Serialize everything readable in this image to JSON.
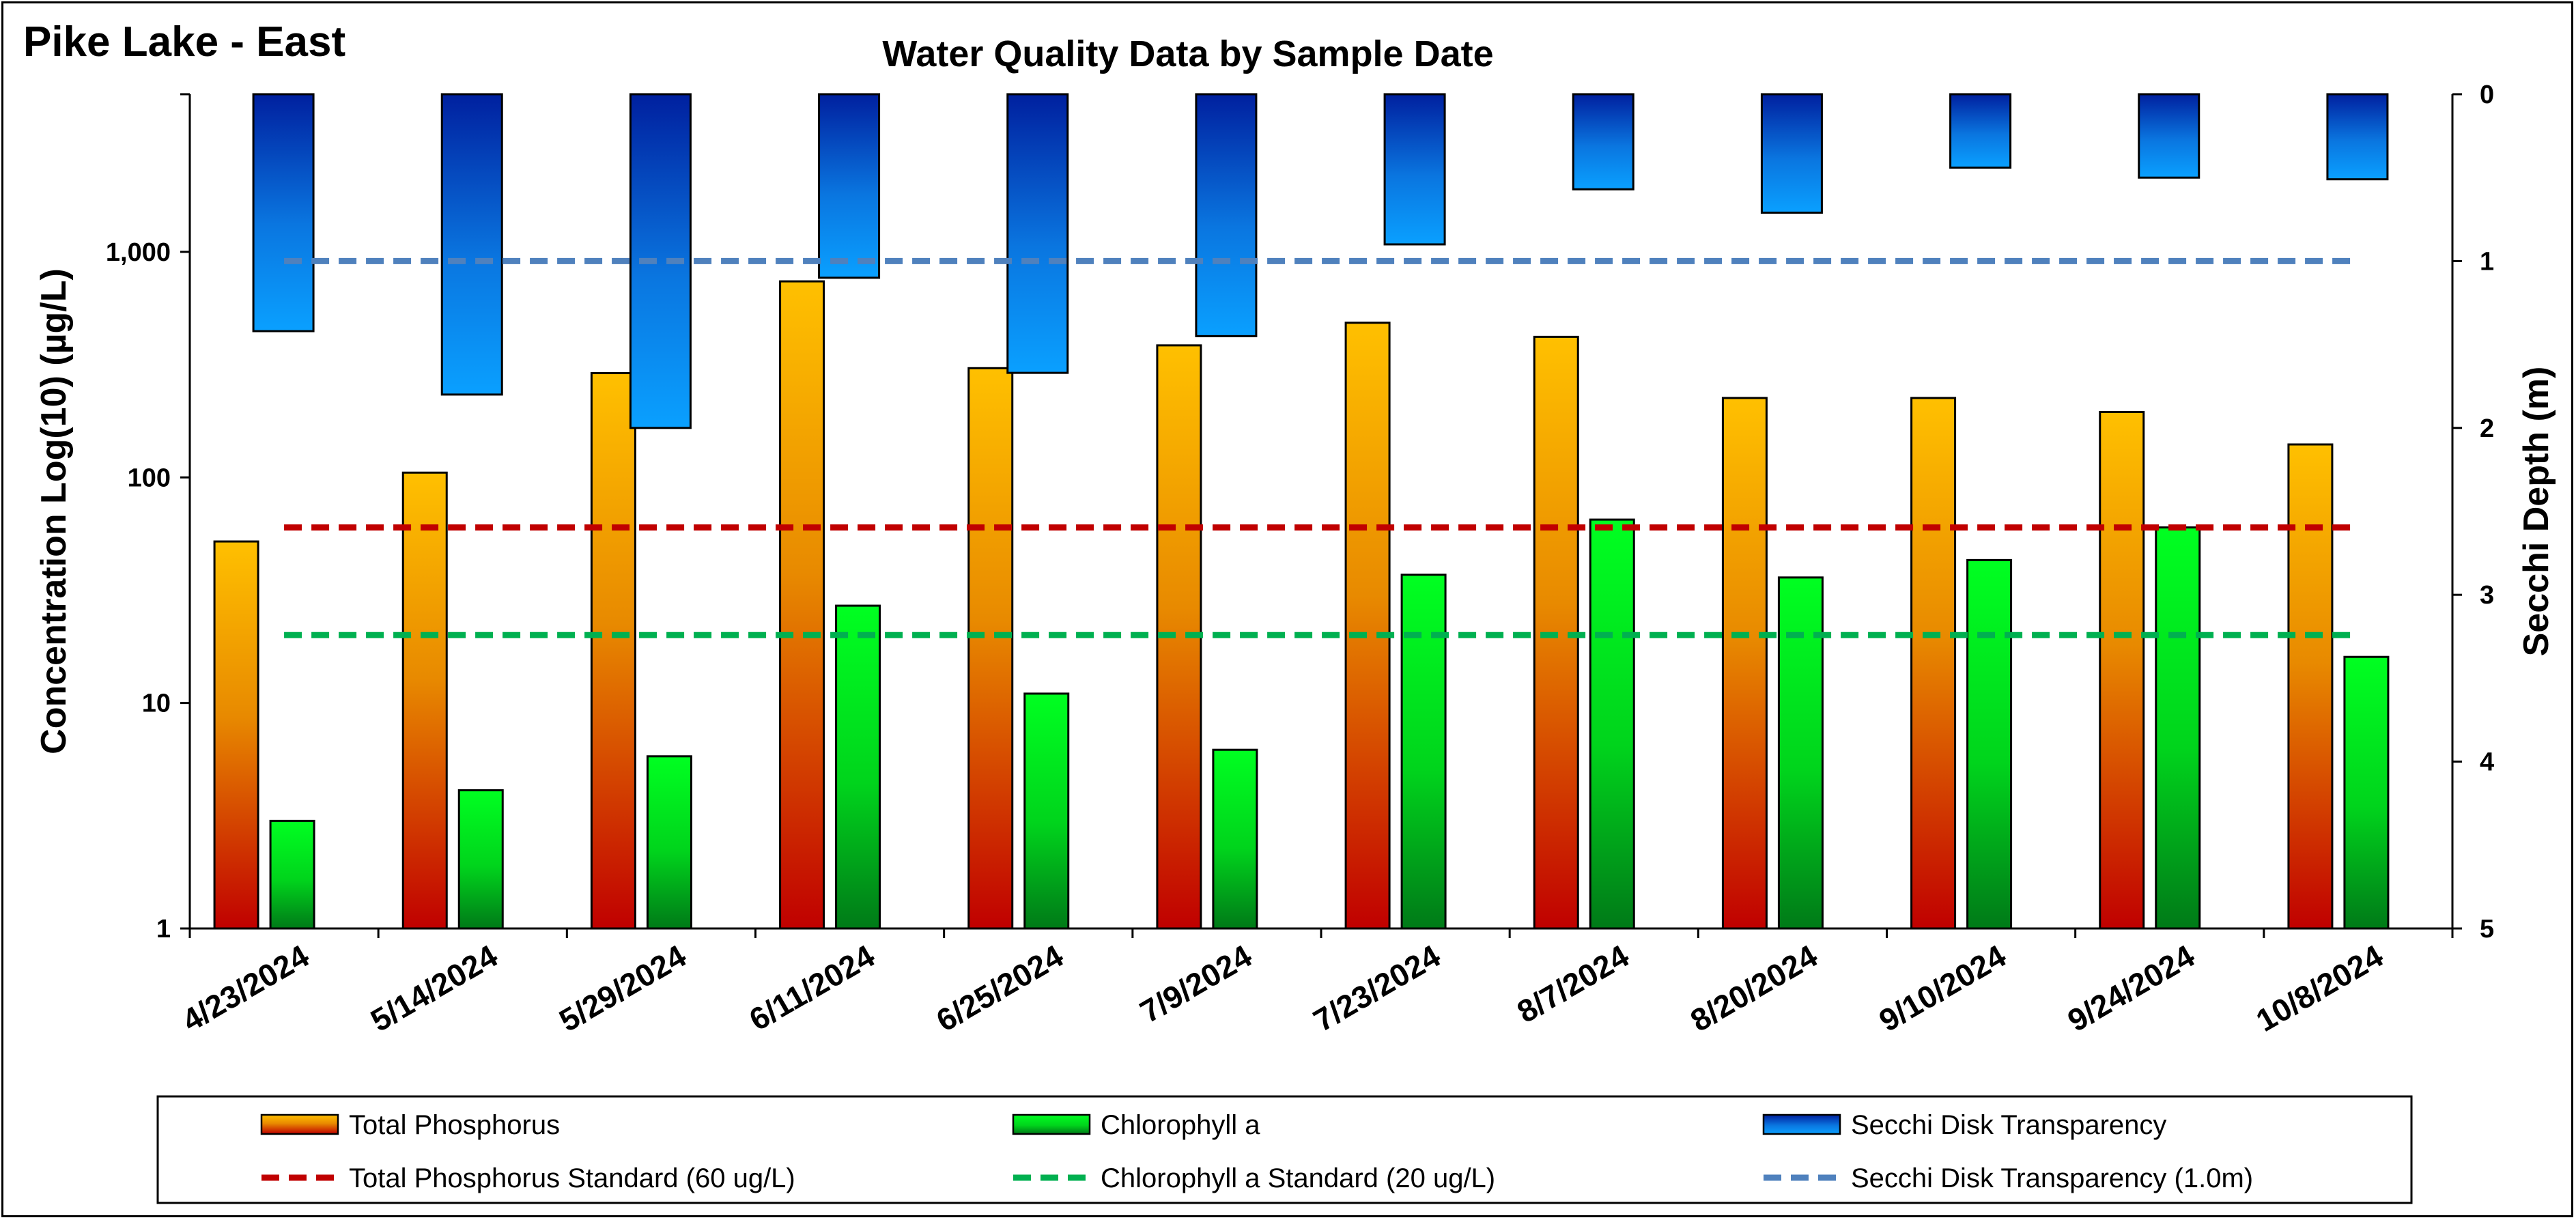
{
  "page_title": "Pike Lake - East",
  "chart_data": {
    "type": "bar",
    "title": "Water Quality Data by Sample Date",
    "ylabel": "Concentration Log(10) (µg/L)",
    "y2label": "Secchi Depth (m)",
    "yscale": "log",
    "ylim": [
      1,
      5000
    ],
    "y2lim": [
      0,
      5
    ],
    "y2_reversed": true,
    "y_ticks": [
      {
        "value": 1,
        "label": "1"
      },
      {
        "value": 10,
        "label": "10"
      },
      {
        "value": 100,
        "label": "100"
      },
      {
        "value": 1000,
        "label": "1,000"
      }
    ],
    "y2_ticks": [
      {
        "value": 0,
        "label": "0"
      },
      {
        "value": 1,
        "label": "1"
      },
      {
        "value": 2,
        "label": "2"
      },
      {
        "value": 3,
        "label": "3"
      },
      {
        "value": 4,
        "label": "4"
      },
      {
        "value": 5,
        "label": "5"
      }
    ],
    "categories": [
      "4/23/2024",
      "5/14/2024",
      "5/29/2024",
      "6/11/2024",
      "6/25/2024",
      "7/9/2024",
      "7/23/2024",
      "8/7/2024",
      "8/20/2024",
      "9/10/2024",
      "9/24/2024",
      "10/8/2024"
    ],
    "series": [
      {
        "name": "Total Phosphorus",
        "axis": "left",
        "type": "bar",
        "color_top": "#FFC000",
        "color_bottom": "#C00000",
        "values": [
          52,
          105,
          290,
          740,
          305,
          385,
          485,
          420,
          225,
          225,
          195,
          140
        ]
      },
      {
        "name": "Chlorophyll a",
        "axis": "left",
        "type": "bar",
        "color_top": "#00FF21",
        "color_bottom": "#007A18",
        "values": [
          3.0,
          4.1,
          5.8,
          27,
          11,
          6.2,
          37,
          65,
          36,
          43,
          60,
          16
        ]
      },
      {
        "name": "Secchi Disk Transparency",
        "axis": "right",
        "type": "bar",
        "color_top": "#00209F",
        "color_bottom": "#0AA0FF",
        "values": [
          1.42,
          1.8,
          2.0,
          1.1,
          1.67,
          1.45,
          0.9,
          0.57,
          0.71,
          0.44,
          0.5,
          0.51
        ]
      }
    ],
    "reference_lines": [
      {
        "name": "Total Phosphorus Standard (60 ug/L)",
        "axis": "left",
        "value": 60,
        "color": "#C00000"
      },
      {
        "name": "Chlorophyll a Standard (20 ug/L)",
        "axis": "left",
        "value": 20,
        "color": "#00B050"
      },
      {
        "name": "Secchi Disk Transparency (1.0m)",
        "axis": "right",
        "value": 1.0,
        "color": "#4F81BD"
      }
    ],
    "grid": false,
    "legend_position": "bottom"
  }
}
